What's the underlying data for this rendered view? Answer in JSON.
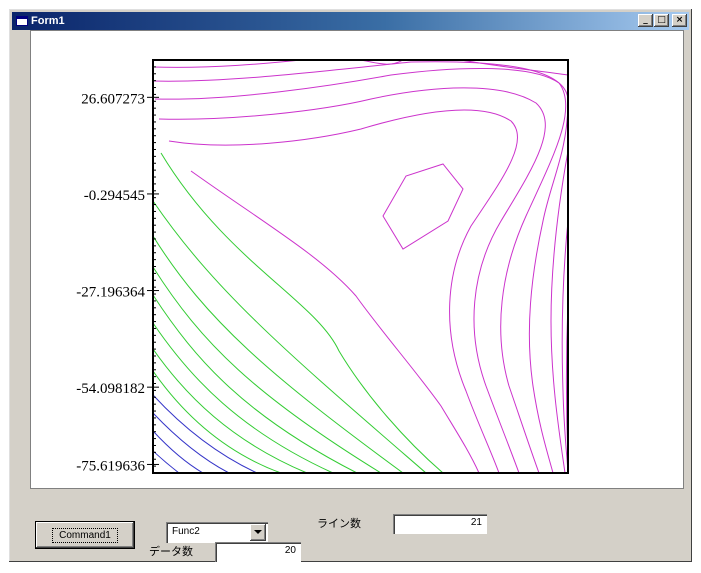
{
  "window": {
    "title": "Form1",
    "minimize_label": "_",
    "maximize_label": "□",
    "close_label": "×"
  },
  "chart_data": {
    "type": "contour",
    "y_tick_labels": [
      "26.607273",
      "-0.294545",
      "-27.196364",
      "-54.098182",
      "-75.619636"
    ],
    "y_tick_values": [
      26.607273,
      -0.294545,
      -27.196364,
      -54.098182,
      -75.619636
    ],
    "ylim": [
      -78.0,
      37.0
    ],
    "grid": false,
    "colors": {
      "frame": "#000000",
      "low_levels": "#3535c8",
      "mid_levels": "#33cc33",
      "high_levels": "#cc33cc"
    }
  },
  "controls": {
    "command_button_label": "Command1",
    "combo_value": "Func2",
    "line_count_label": "ライン数",
    "line_count_value": "21",
    "data_count_label": "データ数",
    "data_count_value": "20"
  }
}
